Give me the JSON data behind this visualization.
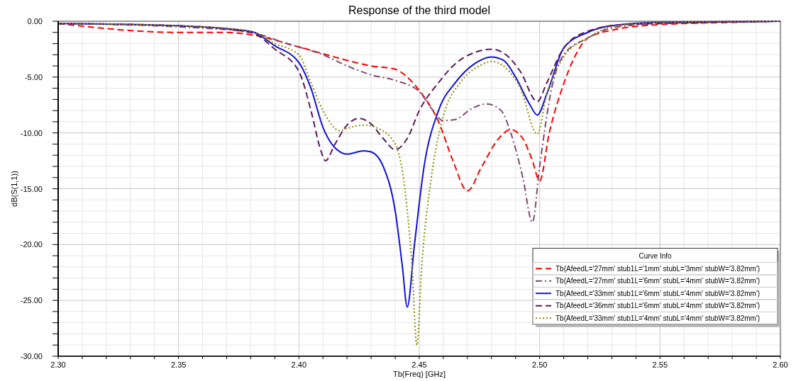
{
  "chart_data": {
    "type": "line",
    "title": "Response of the third model",
    "xlabel": "Tb(Freq) [GHz]",
    "ylabel": "dB(S(1,1))",
    "legend_title": "Curve Info",
    "legend": "bottom right",
    "grid": true,
    "xlim": [
      2.3,
      2.6
    ],
    "ylim": [
      -30,
      0
    ],
    "xticks": [
      {
        "value": 2.3,
        "label": "2.30"
      },
      {
        "value": 2.31,
        "label": null
      },
      {
        "value": 2.32,
        "label": null
      },
      {
        "value": 2.33,
        "label": null
      },
      {
        "value": 2.34,
        "label": null
      },
      {
        "value": 2.35,
        "label": "2.35"
      },
      {
        "value": 2.36,
        "label": null
      },
      {
        "value": 2.37,
        "label": null
      },
      {
        "value": 2.38,
        "label": null
      },
      {
        "value": 2.39,
        "label": null
      },
      {
        "value": 2.4,
        "label": "2.40"
      },
      {
        "value": 2.41,
        "label": null
      },
      {
        "value": 2.42,
        "label": null
      },
      {
        "value": 2.43,
        "label": null
      },
      {
        "value": 2.44,
        "label": null
      },
      {
        "value": 2.45,
        "label": "2.45"
      },
      {
        "value": 2.46,
        "label": null
      },
      {
        "value": 2.47,
        "label": null
      },
      {
        "value": 2.48,
        "label": null
      },
      {
        "value": 2.49,
        "label": null
      },
      {
        "value": 2.5,
        "label": "2.50"
      },
      {
        "value": 2.51,
        "label": null
      },
      {
        "value": 2.52,
        "label": null
      },
      {
        "value": 2.53,
        "label": null
      },
      {
        "value": 2.54,
        "label": null
      },
      {
        "value": 2.55,
        "label": "2.55"
      },
      {
        "value": 2.56,
        "label": null
      },
      {
        "value": 2.57,
        "label": null
      },
      {
        "value": 2.58,
        "label": null
      },
      {
        "value": 2.59,
        "label": null
      },
      {
        "value": 2.6,
        "label": "2.60"
      }
    ],
    "yticks": [
      {
        "value": -30,
        "label": "-30.00"
      },
      {
        "value": -29,
        "label": null
      },
      {
        "value": -28,
        "label": null
      },
      {
        "value": -27,
        "label": null
      },
      {
        "value": -26,
        "label": null
      },
      {
        "value": -25,
        "label": "-25.00"
      },
      {
        "value": -24,
        "label": null
      },
      {
        "value": -23,
        "label": null
      },
      {
        "value": -22,
        "label": null
      },
      {
        "value": -21,
        "label": null
      },
      {
        "value": -20,
        "label": "-20.00"
      },
      {
        "value": -19,
        "label": null
      },
      {
        "value": -18,
        "label": null
      },
      {
        "value": -17,
        "label": null
      },
      {
        "value": -16,
        "label": null
      },
      {
        "value": -15,
        "label": "-15.00"
      },
      {
        "value": -14,
        "label": null
      },
      {
        "value": -13,
        "label": null
      },
      {
        "value": -12,
        "label": null
      },
      {
        "value": -11,
        "label": null
      },
      {
        "value": -10,
        "label": "-10.00"
      },
      {
        "value": -9,
        "label": null
      },
      {
        "value": -8,
        "label": null
      },
      {
        "value": -7,
        "label": null
      },
      {
        "value": -6,
        "label": null
      },
      {
        "value": -5,
        "label": "-5.00"
      },
      {
        "value": -4,
        "label": null
      },
      {
        "value": -3,
        "label": null
      },
      {
        "value": -2,
        "label": null
      },
      {
        "value": -1,
        "label": null
      },
      {
        "value": 0,
        "label": "0.00"
      }
    ],
    "series": [
      {
        "name": "Tb(AfeedL='27mm' stub1L='1mm' stubL='3mm' stubW='3.82mm')",
        "color": "#ff0000",
        "line_style": "dashed",
        "x": [
          2.3,
          2.35,
          2.37,
          2.38,
          2.4,
          2.42,
          2.43,
          2.44,
          2.445,
          2.45,
          2.458,
          2.464,
          2.47,
          2.476,
          2.483,
          2.488,
          2.493,
          2.497,
          2.5,
          2.504,
          2.51,
          2.515,
          2.52,
          2.53,
          2.55,
          2.58,
          2.6
        ],
        "values": [
          -0.2,
          -1.0,
          -1.0,
          -1.2,
          -2.3,
          -3.5,
          -4.0,
          -4.3,
          -5.0,
          -6.2,
          -9.0,
          -12.5,
          -15.2,
          -13.0,
          -10.5,
          -9.7,
          -10.5,
          -12.5,
          -14.3,
          -10.0,
          -5.6,
          -3.0,
          -1.5,
          -0.8,
          -0.3,
          -0.1,
          0
        ]
      },
      {
        "name": "Tb(AfeedL='27mm' stub1L='6mm' stubL='4mm' stubW='3.82mm')",
        "color": "#7f4a70",
        "line_style": "dashdot",
        "x": [
          2.3,
          2.35,
          2.38,
          2.395,
          2.41,
          2.42,
          2.43,
          2.44,
          2.45,
          2.455,
          2.46,
          2.465,
          2.472,
          2.478,
          2.484,
          2.488,
          2.493,
          2.497,
          2.5,
          2.505,
          2.51,
          2.52,
          2.53,
          2.55,
          2.6
        ],
        "values": [
          -0.2,
          -0.5,
          -1.0,
          -2.0,
          -3.0,
          -4.0,
          -4.8,
          -5.3,
          -6.3,
          -7.8,
          -8.9,
          -8.8,
          -7.8,
          -7.4,
          -8.0,
          -10.0,
          -14.0,
          -18.0,
          -13.0,
          -6.0,
          -3.0,
          -1.5,
          -0.6,
          -0.2,
          0
        ]
      },
      {
        "name": "Tb(AfeedL='33mm' stub1L='6mm' stubL='4mm' stubW='3.82mm')",
        "color": "#1010d8",
        "line_style": "solid",
        "x": [
          2.3,
          2.35,
          2.38,
          2.39,
          2.4,
          2.405,
          2.41,
          2.418,
          2.42,
          2.427,
          2.43,
          2.435,
          2.44,
          2.443,
          2.445,
          2.448,
          2.452,
          2.458,
          2.465,
          2.473,
          2.48,
          2.485,
          2.49,
          2.496,
          2.499,
          2.503,
          2.51,
          2.52,
          2.53,
          2.55,
          2.6
        ],
        "values": [
          -0.2,
          -0.4,
          -0.9,
          -2.2,
          -3.7,
          -6.0,
          -9.5,
          -11.8,
          -11.9,
          -11.6,
          -11.7,
          -13.0,
          -17.0,
          -22.0,
          -25.6,
          -20.0,
          -13.0,
          -8.0,
          -5.5,
          -3.8,
          -3.2,
          -3.5,
          -5.0,
          -7.5,
          -8.4,
          -6.5,
          -2.4,
          -1.0,
          -0.4,
          -0.1,
          0
        ]
      },
      {
        "name": "Tb(AfeedL='36mm' stub1L='6mm' stubL='4mm' stubW='3.82mm')",
        "color": "#5a1a5a",
        "line_style": "dashed",
        "x": [
          2.3,
          2.35,
          2.38,
          2.39,
          2.4,
          2.405,
          2.409,
          2.411,
          2.415,
          2.42,
          2.425,
          2.43,
          2.435,
          2.44,
          2.445,
          2.45,
          2.458,
          2.465,
          2.473,
          2.48,
          2.486,
          2.492,
          2.499,
          2.503,
          2.51,
          2.52,
          2.535,
          2.6
        ],
        "values": [
          -0.2,
          -0.4,
          -1.0,
          -2.5,
          -4.5,
          -8.0,
          -11.5,
          -12.5,
          -11.0,
          -9.3,
          -8.7,
          -9.2,
          -10.5,
          -11.5,
          -10.5,
          -8.0,
          -5.5,
          -3.8,
          -2.8,
          -2.5,
          -3.0,
          -4.5,
          -7.2,
          -5.5,
          -2.4,
          -0.9,
          -0.3,
          0
        ]
      },
      {
        "name": "Tb(AfeedL='33mm' stub1L='4mm' stubL='4mm' stubW='3.82mm')",
        "color": "#8c8c00",
        "line_style": "dotted",
        "x": [
          2.3,
          2.35,
          2.38,
          2.39,
          2.4,
          2.405,
          2.41,
          2.417,
          2.42,
          2.427,
          2.433,
          2.44,
          2.444,
          2.447,
          2.449,
          2.451,
          2.455,
          2.46,
          2.467,
          2.475,
          2.48,
          2.486,
          2.492,
          2.499,
          2.503,
          2.51,
          2.52,
          2.53,
          2.55,
          2.6
        ],
        "values": [
          -0.2,
          -0.4,
          -0.9,
          -2.0,
          -3.0,
          -5.5,
          -8.0,
          -9.8,
          -9.6,
          -9.3,
          -9.6,
          -11.0,
          -15.0,
          -22.0,
          -29.0,
          -22.0,
          -14.0,
          -8.5,
          -5.5,
          -4.0,
          -3.6,
          -4.2,
          -6.0,
          -10.1,
          -6.5,
          -3.2,
          -1.5,
          -0.5,
          -0.1,
          0
        ]
      }
    ]
  }
}
